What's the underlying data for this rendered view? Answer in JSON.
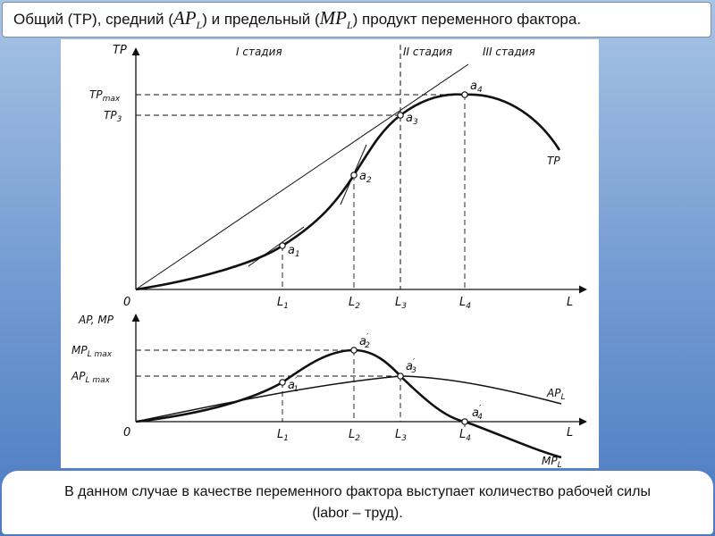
{
  "title": {
    "part1": "Общий (ТР), средний (",
    "ap_main": "AP",
    "ap_sub": "L",
    "part2": " ) и предельный ( ",
    "mp_main": "MP",
    "mp_sub": "L",
    "part3": " ) продукт переменного фактора."
  },
  "top_chart": {
    "y_axis": "TP",
    "x_axis": "L",
    "origin": "0",
    "stages": [
      "I стадия",
      "II стадия",
      "III стадия"
    ],
    "y_ticks": {
      "max": "TP",
      "max_sub": "max",
      "three": "TP",
      "three_sub": "3"
    },
    "x_ticks": [
      {
        "main": "L",
        "sub": "1"
      },
      {
        "main": "L",
        "sub": "2"
      },
      {
        "main": "L",
        "sub": "3"
      },
      {
        "main": "L",
        "sub": "4"
      }
    ],
    "points": [
      {
        "main": "a",
        "sub": "1"
      },
      {
        "main": "a",
        "sub": "2"
      },
      {
        "main": "a",
        "sub": "3"
      },
      {
        "main": "a",
        "sub": "4"
      }
    ],
    "curve_label": "TP"
  },
  "bottom_chart": {
    "y_axis": "AP, MP",
    "x_axis": "L",
    "origin": "0",
    "y_ticks": {
      "mp": "MP",
      "mp_sub": "L max",
      "ap": "AP",
      "ap_sub": "L max"
    },
    "x_ticks": [
      {
        "main": "L",
        "sub": "1"
      },
      {
        "main": "L",
        "sub": "2"
      },
      {
        "main": "L",
        "sub": "3"
      },
      {
        "main": "L",
        "sub": "4"
      }
    ],
    "points": [
      {
        "main": "a",
        "sub": "1",
        "prime": "′"
      },
      {
        "main": "a",
        "sub": "2",
        "prime": "′"
      },
      {
        "main": "a",
        "sub": "3",
        "prime": "′"
      },
      {
        "main": "a",
        "sub": "4",
        "prime": "′"
      }
    ],
    "curve_labels": {
      "ap": "AP",
      "ap_sub": "L",
      "mp": "MP",
      "mp_sub": "L"
    }
  },
  "note": "В данном случае в качестве переменного фактора выступает количество рабочей силы (labor – труд)."
}
